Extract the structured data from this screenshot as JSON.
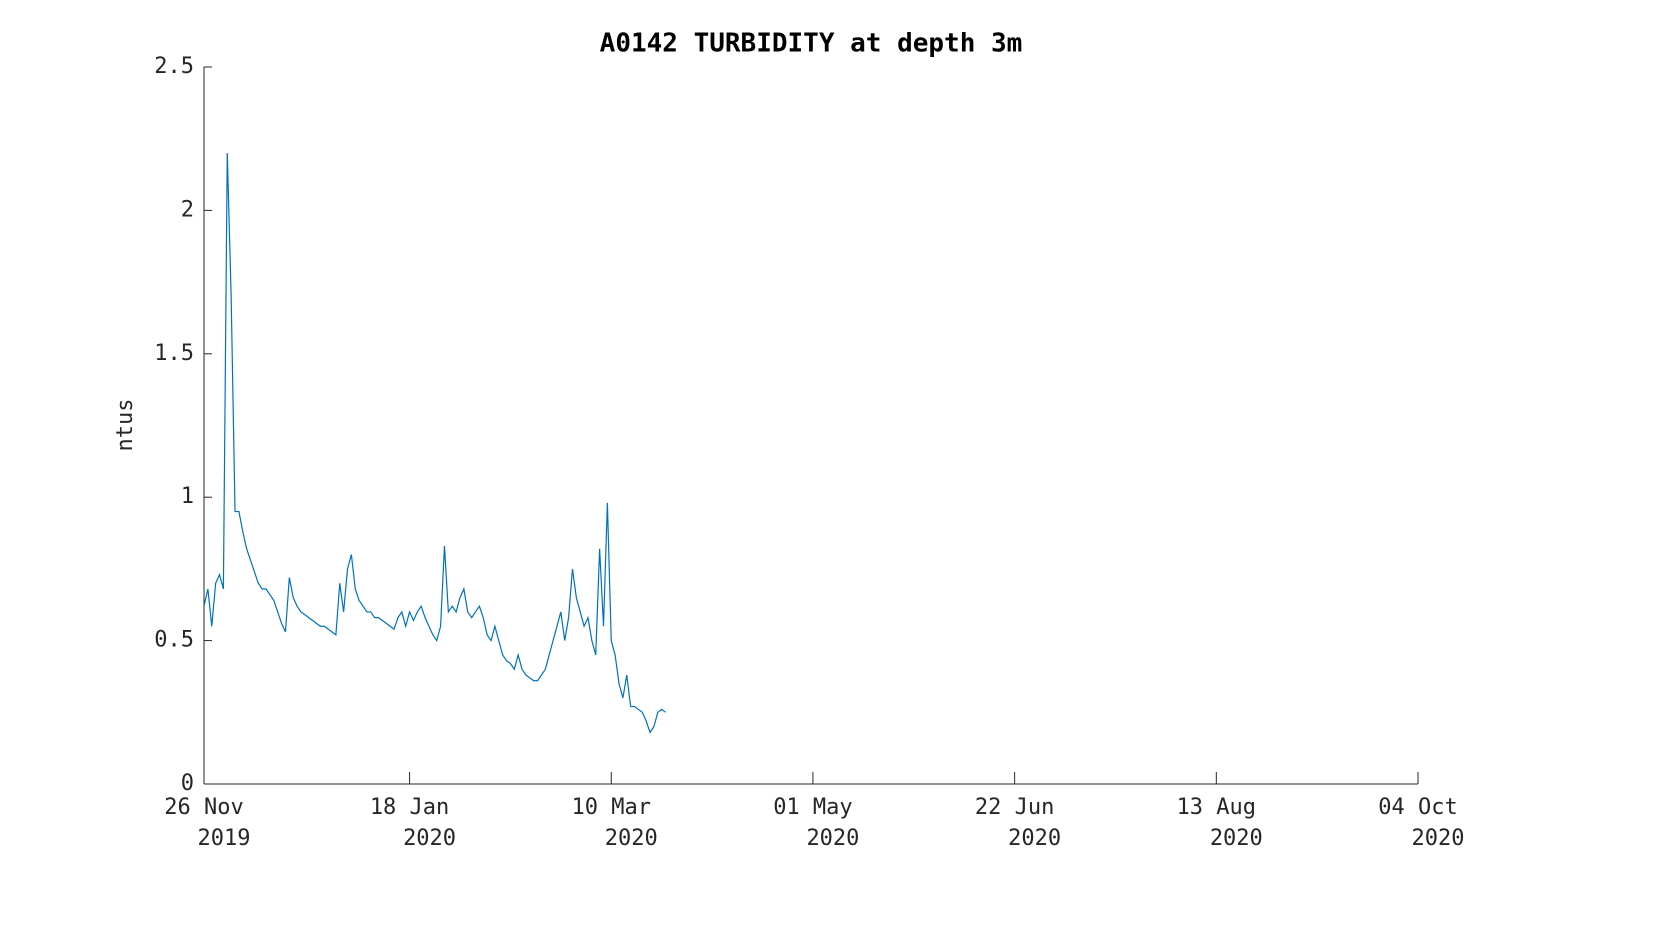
{
  "chart_data": {
    "type": "line",
    "title": "A0142 TURBIDITY at depth 3m",
    "y_label": "ntus",
    "x": [
      "2019-11-26",
      "2019-11-27",
      "2019-11-28",
      "2019-11-29",
      "2019-11-30",
      "2019-12-01",
      "2019-12-02",
      "2019-12-03",
      "2019-12-04",
      "2019-12-05",
      "2019-12-06",
      "2019-12-07",
      "2019-12-08",
      "2019-12-09",
      "2019-12-10",
      "2019-12-11",
      "2019-12-12",
      "2019-12-13",
      "2019-12-14",
      "2019-12-15",
      "2019-12-16",
      "2019-12-17",
      "2019-12-18",
      "2019-12-19",
      "2019-12-20",
      "2019-12-21",
      "2019-12-22",
      "2019-12-23",
      "2019-12-24",
      "2019-12-25",
      "2019-12-26",
      "2019-12-27",
      "2019-12-28",
      "2019-12-29",
      "2019-12-30",
      "2019-12-31",
      "2020-01-01",
      "2020-01-02",
      "2020-01-03",
      "2020-01-04",
      "2020-01-05",
      "2020-01-06",
      "2020-01-07",
      "2020-01-08",
      "2020-01-09",
      "2020-01-10",
      "2020-01-11",
      "2020-01-12",
      "2020-01-13",
      "2020-01-14",
      "2020-01-15",
      "2020-01-16",
      "2020-01-17",
      "2020-01-18",
      "2020-01-19",
      "2020-01-20",
      "2020-01-21",
      "2020-01-22",
      "2020-01-23",
      "2020-01-24",
      "2020-01-25",
      "2020-01-26",
      "2020-01-27",
      "2020-01-28",
      "2020-01-29",
      "2020-01-30",
      "2020-01-31",
      "2020-02-01",
      "2020-02-02",
      "2020-02-03",
      "2020-02-04",
      "2020-02-05",
      "2020-02-06",
      "2020-02-07",
      "2020-02-08",
      "2020-02-09",
      "2020-02-10",
      "2020-02-11",
      "2020-02-12",
      "2020-02-13",
      "2020-02-14",
      "2020-02-15",
      "2020-02-16",
      "2020-02-17",
      "2020-02-18",
      "2020-02-19",
      "2020-02-20",
      "2020-02-21",
      "2020-02-22",
      "2020-02-23",
      "2020-02-24",
      "2020-02-25",
      "2020-02-26",
      "2020-02-27",
      "2020-02-28",
      "2020-02-29",
      "2020-03-01",
      "2020-03-02",
      "2020-03-03",
      "2020-03-04",
      "2020-03-05",
      "2020-03-06",
      "2020-03-07",
      "2020-03-08",
      "2020-03-09",
      "2020-03-10",
      "2020-03-11",
      "2020-03-12",
      "2020-03-13",
      "2020-03-14",
      "2020-03-15",
      "2020-03-16",
      "2020-03-17",
      "2020-03-18",
      "2020-03-19",
      "2020-03-20",
      "2020-03-21",
      "2020-03-22",
      "2020-03-23",
      "2020-03-24"
    ],
    "series": [
      {
        "color": "#0072bd",
        "values": [
          0.62,
          0.68,
          0.55,
          0.7,
          0.73,
          0.68,
          2.2,
          1.7,
          0.95,
          0.95,
          0.88,
          0.82,
          0.78,
          0.74,
          0.7,
          0.68,
          0.68,
          0.66,
          0.64,
          0.6,
          0.56,
          0.53,
          0.72,
          0.65,
          0.62,
          0.6,
          0.59,
          0.58,
          0.57,
          0.56,
          0.55,
          0.55,
          0.54,
          0.53,
          0.52,
          0.7,
          0.6,
          0.75,
          0.8,
          0.68,
          0.64,
          0.62,
          0.6,
          0.6,
          0.58,
          0.58,
          0.57,
          0.56,
          0.55,
          0.54,
          0.58,
          0.6,
          0.55,
          0.6,
          0.57,
          0.6,
          0.62,
          0.58,
          0.55,
          0.52,
          0.5,
          0.55,
          0.83,
          0.6,
          0.62,
          0.6,
          0.65,
          0.68,
          0.6,
          0.58,
          0.6,
          0.62,
          0.58,
          0.52,
          0.5,
          0.55,
          0.5,
          0.45,
          0.43,
          0.42,
          0.4,
          0.45,
          0.4,
          0.38,
          0.37,
          0.36,
          0.36,
          0.38,
          0.4,
          0.45,
          0.5,
          0.55,
          0.6,
          0.5,
          0.58,
          0.75,
          0.65,
          0.6,
          0.55,
          0.58,
          0.5,
          0.45,
          0.82,
          0.55,
          0.98,
          0.5,
          0.45,
          0.35,
          0.3,
          0.38,
          0.27,
          0.27,
          0.26,
          0.25,
          0.22,
          0.18,
          0.2,
          0.25,
          0.26,
          0.25
        ]
      }
    ],
    "xlim": [
      "2019-11-26",
      "2020-10-04"
    ],
    "xticks": [
      {
        "value": "2019-11-26",
        "label": [
          "26 Nov",
          "2019"
        ]
      },
      {
        "value": "2020-01-18",
        "label": [
          "18 Jan",
          "2020"
        ]
      },
      {
        "value": "2020-03-10",
        "label": [
          "10 Mar",
          "2020"
        ]
      },
      {
        "value": "2020-05-01",
        "label": [
          "01 May",
          "2020"
        ]
      },
      {
        "value": "2020-06-22",
        "label": [
          "22 Jun",
          "2020"
        ]
      },
      {
        "value": "2020-08-13",
        "label": [
          "13 Aug",
          "2020"
        ]
      },
      {
        "value": "2020-10-04",
        "label": [
          "04 Oct",
          "2020"
        ]
      }
    ],
    "ylim": [
      0,
      2.5
    ],
    "yticks": [
      0,
      0.5,
      1,
      1.5,
      2,
      2.5
    ],
    "grid": false
  }
}
